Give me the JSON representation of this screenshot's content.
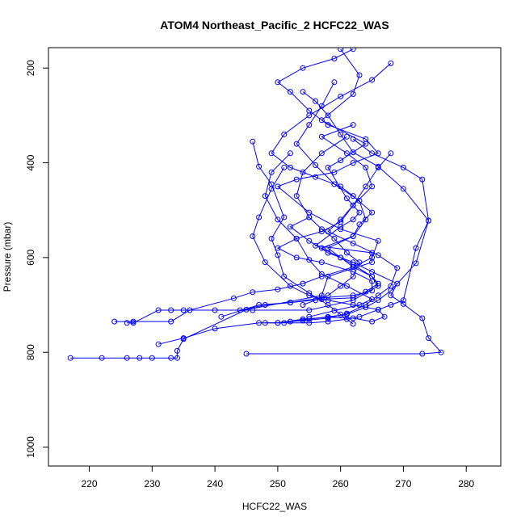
{
  "chart_data": {
    "type": "line",
    "title": "ATOM4 Northeast_Pacific_2 HCFC22_WAS",
    "xlabel": "HCFC22_WAS",
    "ylabel": "Pressure (mbar)",
    "xlim": [
      213.5,
      285.5
    ],
    "ylim": [
      1040,
      157
    ],
    "y_reversed": true,
    "x_ticks": [
      220,
      230,
      240,
      250,
      260,
      270,
      280
    ],
    "y_ticks": [
      200,
      400,
      600,
      800,
      1000
    ],
    "marker": "open-circle",
    "color": "#0000ff",
    "grid": false,
    "series": [
      {
        "x": [
          217,
          222,
          226,
          228,
          230,
          233,
          234,
          234,
          235,
          245,
          257,
          258,
          265,
          265,
          256,
          260,
          262,
          263,
          261,
          258,
          260,
          264,
          257,
          262,
          263,
          260
        ],
        "y": [
          812,
          812,
          812,
          812,
          812,
          812,
          812,
          797,
          772,
          710,
          680,
          640,
          610,
          590,
          575,
          535,
          520,
          505,
          475,
          410,
          395,
          360,
          310,
          255,
          215,
          160
        ]
      },
      {
        "x": [
          224,
          227,
          233,
          236,
          243,
          246,
          250,
          254,
          257,
          262,
          265,
          266,
          260,
          255,
          250,
          253,
          259,
          262,
          266,
          264,
          258,
          255,
          252,
          250,
          254,
          259,
          262
        ],
        "y": [
          735,
          735,
          735,
          711,
          686,
          673,
          667,
          655,
          640,
          620,
          600,
          565,
          540,
          505,
          450,
          435,
          420,
          400,
          380,
          350,
          320,
          290,
          250,
          230,
          200,
          180,
          160
        ]
      },
      {
        "x": [
          226,
          227,
          231,
          233,
          235,
          246,
          255,
          262,
          266,
          265,
          262,
          260,
          258,
          262,
          263,
          265,
          262,
          260,
          256,
          252,
          249,
          251,
          255,
          260,
          265,
          268
        ],
        "y": [
          738,
          738,
          711,
          711,
          711,
          711,
          711,
          690,
          660,
          640,
          615,
          600,
          580,
          555,
          530,
          505,
          470,
          450,
          430,
          410,
          380,
          340,
          300,
          260,
          225,
          190
        ]
      },
      {
        "x": [
          231,
          235,
          240,
          247,
          250,
          254,
          258,
          261,
          264,
          266,
          268,
          269,
          266,
          262,
          258,
          260,
          262,
          265,
          264,
          261,
          257,
          262
        ],
        "y": [
          783,
          770,
          750,
          738,
          738,
          733,
          728,
          718,
          700,
          680,
          660,
          622,
          595,
          570,
          545,
          520,
          490,
          450,
          410,
          380,
          345,
          320
        ]
      },
      {
        "x": [
          240,
          244,
          248,
          252,
          257,
          262,
          264,
          266,
          265,
          262,
          260,
          257,
          262,
          264,
          263,
          259,
          256,
          253,
          255,
          257,
          259
        ],
        "y": [
          711,
          711,
          700,
          695,
          688,
          685,
          672,
          655,
          640,
          620,
          600,
          580,
          555,
          520,
          480,
          445,
          405,
          360,
          320,
          280,
          230
        ]
      },
      {
        "x": [
          241,
          247,
          252,
          257,
          262,
          265,
          265,
          262,
          257,
          253,
          250,
          253,
          257,
          260,
          262,
          264,
          266,
          268
        ],
        "y": [
          725,
          700,
          695,
          685,
          680,
          670,
          650,
          630,
          610,
          600,
          580,
          560,
          545,
          525,
          490,
          450,
          410,
          380
        ]
      },
      {
        "x": [
          245,
          273,
          276,
          274,
          273,
          270,
          268,
          269,
          265,
          262,
          258,
          255,
          252,
          255
        ],
        "y": [
          803,
          803,
          800,
          770,
          728,
          698,
          680,
          655,
          630,
          610,
          590,
          565,
          535,
          515
        ]
      },
      {
        "x": [
          248,
          251,
          255,
          258,
          261,
          263,
          266,
          268,
          270,
          272,
          274,
          273,
          270,
          265,
          262
        ],
        "y": [
          738,
          738,
          738,
          735,
          730,
          725,
          710,
          700,
          690,
          580,
          522,
          435,
          410,
          380,
          350
        ]
      },
      {
        "x": [
          250,
          254,
          258,
          262,
          265,
          267,
          266,
          262,
          258,
          255,
          252,
          248,
          246,
          247,
          249,
          251
        ],
        "y": [
          738,
          730,
          726,
          728,
          735,
          725,
          710,
          700,
          690,
          680,
          660,
          610,
          555,
          515,
          455,
          410
        ]
      },
      {
        "x": [
          252,
          255,
          258,
          261,
          264,
          266,
          268,
          272,
          274,
          270,
          266,
          262,
          260,
          258,
          256,
          254
        ],
        "y": [
          735,
          730,
          725,
          720,
          705,
          690,
          670,
          612,
          522,
          455,
          408,
          378,
          340,
          300,
          270,
          250
        ]
      },
      {
        "x": [
          254,
          256,
          258,
          260,
          262,
          263,
          261,
          259,
          257,
          255,
          253,
          254,
          257,
          261
        ],
        "y": [
          700,
          690,
          680,
          660,
          640,
          610,
          590,
          560,
          540,
          515,
          470,
          420,
          380,
          345
        ]
      },
      {
        "x": [
          255,
          259,
          263,
          265,
          261,
          257,
          255,
          253,
          250,
          248,
          249,
          252
        ],
        "y": [
          725,
          712,
          700,
          688,
          660,
          635,
          605,
          560,
          520,
          470,
          420,
          380
        ]
      },
      {
        "x": [
          262,
          260,
          258,
          255,
          251,
          250,
          249,
          251,
          249,
          247,
          246
        ],
        "y": [
          740,
          720,
          700,
          675,
          640,
          595,
          560,
          515,
          445,
          408,
          355
        ]
      }
    ]
  }
}
